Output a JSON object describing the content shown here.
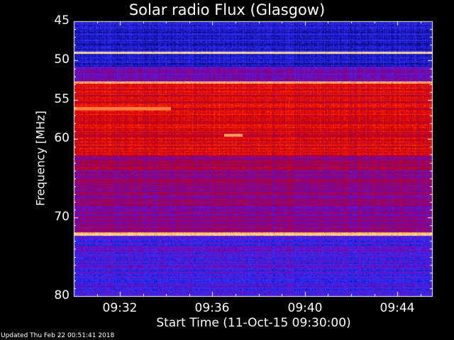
{
  "chart_data": {
    "type": "heatmap",
    "title": "Solar radio Flux (Glasgow)",
    "ylabel": "Frequency [MHz]",
    "xlabel": "Start Time (11-Oct-15 09:30:00)",
    "ylim": [
      80,
      45
    ],
    "yticks": [
      45,
      50,
      55,
      60,
      70,
      80
    ],
    "xlim_minutes": [
      0,
      15.5
    ],
    "xticks": [
      {
        "label": "09:32",
        "minute": 2
      },
      {
        "label": "09:36",
        "minute": 6
      },
      {
        "label": "09:40",
        "minute": 10
      },
      {
        "label": "09:44",
        "minute": 14
      }
    ],
    "colormap": [
      "#000020",
      "#1010a0",
      "#3030ff",
      "#8000a0",
      "#c00010",
      "#ff2000",
      "#ff8040",
      "#ffe0a0"
    ],
    "bands": [
      {
        "from": 45,
        "to": 48.8,
        "level": 0.2
      },
      {
        "from": 48.8,
        "to": 49.1,
        "level": 1.0
      },
      {
        "from": 49.1,
        "to": 50.7,
        "level": 0.22
      },
      {
        "from": 50.7,
        "to": 52.6,
        "level": 0.4
      },
      {
        "from": 52.6,
        "to": 52.9,
        "level": 0.95
      },
      {
        "from": 52.9,
        "to": 62.0,
        "level": 0.62
      },
      {
        "from": 62.0,
        "to": 64.0,
        "level": 0.5
      },
      {
        "from": 64.0,
        "to": 71.8,
        "level": 0.45
      },
      {
        "from": 71.8,
        "to": 72.3,
        "level": 0.95
      },
      {
        "from": 72.3,
        "to": 80,
        "level": 0.32
      }
    ],
    "features": [
      {
        "freq_from": 55.9,
        "freq_to": 56.3,
        "t_from": 0,
        "t_to": 4.2,
        "level": 0.85
      },
      {
        "freq_from": 59.3,
        "freq_to": 59.7,
        "t_from": 6.5,
        "t_to": 7.3,
        "level": 0.9
      }
    ]
  },
  "footer": "Updated Thu Feb 22 00:51:41 2018"
}
